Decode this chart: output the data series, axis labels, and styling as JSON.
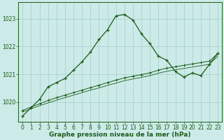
{
  "title": "Graphe pression niveau de la mer (hPa)",
  "background_color": "#cceae7",
  "grid_color": "#aad4d0",
  "line_color": "#1a5c1a",
  "x_ticks": [
    0,
    1,
    2,
    3,
    4,
    5,
    6,
    7,
    8,
    9,
    10,
    11,
    12,
    13,
    14,
    15,
    16,
    17,
    18,
    19,
    20,
    21,
    22,
    23
  ],
  "y_ticks": [
    1020,
    1021,
    1022,
    1023
  ],
  "ylim": [
    1019.3,
    1023.6
  ],
  "xlim": [
    -0.5,
    23.5
  ],
  "series1_x": [
    0,
    1,
    2,
    3,
    4,
    5,
    6,
    7,
    8,
    9,
    10,
    11,
    12,
    13,
    14,
    15,
    16,
    17,
    18,
    19,
    20,
    21,
    22,
    23
  ],
  "series1_y": [
    1019.5,
    1019.8,
    1020.1,
    1020.55,
    1020.7,
    1020.85,
    1021.15,
    1021.45,
    1021.8,
    1022.25,
    1022.6,
    1023.1,
    1023.15,
    1022.95,
    1022.45,
    1022.1,
    1021.65,
    1021.5,
    1021.1,
    1020.9,
    1021.05,
    1020.95,
    1021.35,
    1021.75
  ],
  "series2_x": [
    0,
    1,
    2,
    3,
    4,
    5,
    6,
    7,
    8,
    9,
    10,
    11,
    12,
    13,
    14,
    15,
    16,
    17,
    18,
    19,
    20,
    21,
    22,
    23
  ],
  "series2_y": [
    1019.7,
    1019.82,
    1019.94,
    1020.06,
    1020.16,
    1020.25,
    1020.34,
    1020.43,
    1020.52,
    1020.61,
    1020.7,
    1020.79,
    1020.87,
    1020.93,
    1020.99,
    1021.05,
    1021.15,
    1021.22,
    1021.27,
    1021.32,
    1021.37,
    1021.42,
    1021.47,
    1021.75
  ],
  "series3_x": [
    0,
    1,
    2,
    3,
    4,
    5,
    6,
    7,
    8,
    9,
    10,
    11,
    12,
    13,
    14,
    15,
    16,
    17,
    18,
    19,
    20,
    21,
    22,
    23
  ],
  "series3_y": [
    1019.65,
    1019.76,
    1019.87,
    1019.97,
    1020.07,
    1020.16,
    1020.25,
    1020.34,
    1020.43,
    1020.51,
    1020.6,
    1020.68,
    1020.77,
    1020.83,
    1020.89,
    1020.95,
    1021.04,
    1021.11,
    1021.16,
    1021.21,
    1021.26,
    1021.31,
    1021.36,
    1021.65
  ],
  "title_fontsize": 6.5,
  "tick_fontsize": 5.5
}
